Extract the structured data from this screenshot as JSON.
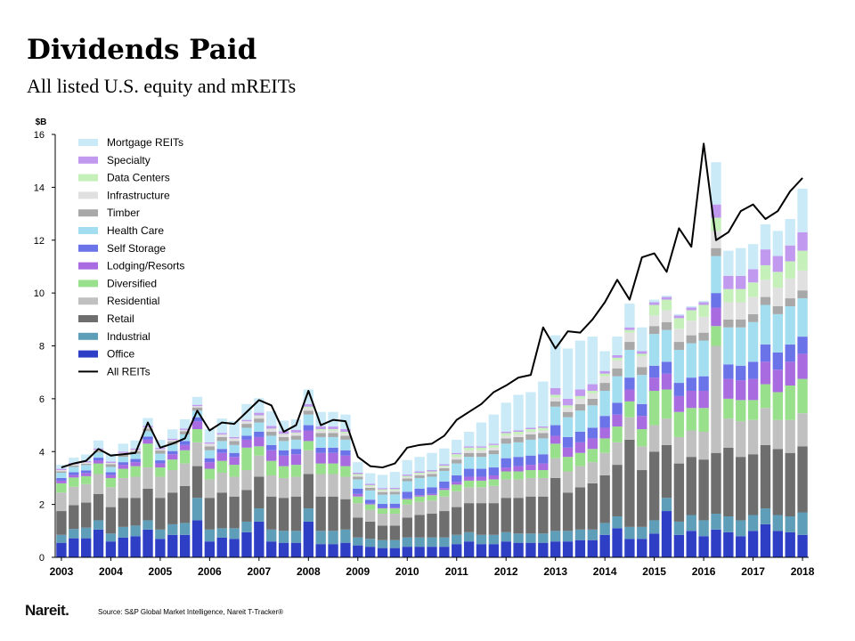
{
  "header": {
    "title": "Dividends Paid",
    "subtitle": "All listed U.S. equity and mREITs"
  },
  "footer": {
    "logo": "Nareit.",
    "source": "Source: S&P Global Market Intelligence, Nareit T-Tracker®"
  },
  "colors": {
    "Office": "#2e3fc6",
    "Industrial": "#5f9eb8",
    "Retail": "#6e6e6e",
    "Residential": "#c0c0c0",
    "Diversified": "#99e08c",
    "Lodging/Resorts": "#a86ce0",
    "Self Storage": "#6b73e8",
    "Health Care": "#a3def0",
    "Timber": "#a8a8a8",
    "Infrastructure": "#e0e0e0",
    "Data Centers": "#c6f0ba",
    "Specialty": "#c19af0",
    "Mortgage REITs": "#c9eaf6",
    "All REITs": "#000000"
  },
  "chart_data": {
    "type": "bar",
    "stacked": true,
    "ylabel": "$B",
    "ylim": [
      0,
      16
    ],
    "yticks": [
      0,
      2,
      4,
      6,
      8,
      10,
      12,
      14,
      16
    ],
    "xticks": [
      "2003",
      "2004",
      "2005",
      "2006",
      "2007",
      "2008",
      "2009",
      "2010",
      "2011",
      "2012",
      "2013",
      "2014",
      "2015",
      "2016",
      "2017",
      "2018"
    ],
    "legend_position": "top-left",
    "legend": [
      "Mortgage REITs",
      "Specialty",
      "Data Centers",
      "Infrastructure",
      "Timber",
      "Health Care",
      "Self Storage",
      "Lodging/Resorts",
      "Diversified",
      "Residential",
      "Retail",
      "Industrial",
      "Office",
      "All REITs"
    ],
    "quarters": [
      "2003Q1",
      "2003Q2",
      "2003Q3",
      "2003Q4",
      "2004Q1",
      "2004Q2",
      "2004Q3",
      "2004Q4",
      "2005Q1",
      "2005Q2",
      "2005Q3",
      "2005Q4",
      "2006Q1",
      "2006Q2",
      "2006Q3",
      "2006Q4",
      "2007Q1",
      "2007Q2",
      "2007Q3",
      "2007Q4",
      "2008Q1",
      "2008Q2",
      "2008Q3",
      "2008Q4",
      "2009Q1",
      "2009Q2",
      "2009Q3",
      "2009Q4",
      "2010Q1",
      "2010Q2",
      "2010Q3",
      "2010Q4",
      "2011Q1",
      "2011Q2",
      "2011Q3",
      "2011Q4",
      "2012Q1",
      "2012Q2",
      "2012Q3",
      "2012Q4",
      "2013Q1",
      "2013Q2",
      "2013Q3",
      "2013Q4",
      "2014Q1",
      "2014Q2",
      "2014Q3",
      "2014Q4",
      "2015Q1",
      "2015Q2",
      "2015Q3",
      "2015Q4",
      "2016Q1",
      "2016Q2",
      "2016Q3",
      "2016Q4",
      "2017Q1",
      "2017Q2",
      "2017Q3",
      "2017Q4",
      "2018Q1"
    ],
    "series": [
      {
        "name": "Office",
        "values": [
          0.55,
          0.72,
          0.72,
          1.05,
          0.6,
          0.75,
          0.8,
          1.05,
          0.7,
          0.85,
          0.85,
          1.4,
          0.6,
          0.75,
          0.7,
          0.95,
          1.35,
          0.6,
          0.55,
          0.55,
          1.35,
          0.5,
          0.5,
          0.55,
          0.45,
          0.4,
          0.35,
          0.35,
          0.4,
          0.4,
          0.4,
          0.4,
          0.5,
          0.6,
          0.5,
          0.5,
          0.6,
          0.55,
          0.55,
          0.55,
          0.6,
          0.6,
          0.65,
          0.65,
          0.85,
          1.1,
          0.7,
          0.7,
          0.9,
          1.75,
          0.85,
          1.0,
          0.8,
          1.05,
          0.95,
          0.8,
          1.0,
          1.25,
          1.0,
          0.95,
          0.85
        ]
      },
      {
        "name": "Industrial",
        "values": [
          0.3,
          0.35,
          0.4,
          0.35,
          0.3,
          0.4,
          0.4,
          0.35,
          0.35,
          0.4,
          0.45,
          0.85,
          0.45,
          0.35,
          0.4,
          0.4,
          0.5,
          0.45,
          0.45,
          0.45,
          0.5,
          0.5,
          0.5,
          0.5,
          0.3,
          0.3,
          0.3,
          0.3,
          0.35,
          0.35,
          0.35,
          0.35,
          0.35,
          0.35,
          0.35,
          0.35,
          0.35,
          0.35,
          0.35,
          0.35,
          0.4,
          0.4,
          0.4,
          0.4,
          0.45,
          0.45,
          0.45,
          0.45,
          0.5,
          0.5,
          0.5,
          0.6,
          0.6,
          0.6,
          0.6,
          0.6,
          0.6,
          0.6,
          0.6,
          0.6,
          0.85
        ]
      },
      {
        "name": "Retail",
        "values": [
          0.9,
          0.9,
          0.95,
          1.0,
          1.0,
          1.1,
          1.05,
          1.2,
          1.2,
          1.2,
          1.4,
          1.2,
          1.2,
          1.35,
          1.2,
          1.2,
          1.2,
          1.25,
          1.25,
          1.3,
          1.3,
          1.3,
          1.3,
          1.15,
          0.75,
          0.65,
          0.55,
          0.55,
          0.75,
          0.85,
          0.9,
          1.0,
          1.05,
          1.1,
          1.2,
          1.2,
          1.3,
          1.35,
          1.4,
          1.4,
          2.0,
          1.45,
          1.6,
          1.75,
          1.8,
          1.95,
          3.3,
          2.15,
          2.6,
          2.0,
          2.2,
          2.2,
          2.3,
          2.3,
          2.6,
          2.4,
          2.3,
          2.4,
          2.5,
          2.4,
          2.5
        ]
      },
      {
        "name": "Residential",
        "values": [
          0.7,
          0.7,
          0.7,
          0.75,
          0.75,
          0.75,
          0.8,
          0.8,
          0.8,
          0.85,
          0.85,
          0.9,
          0.7,
          0.75,
          0.75,
          0.75,
          0.8,
          0.8,
          0.75,
          0.75,
          0.9,
          0.85,
          0.85,
          0.85,
          0.55,
          0.45,
          0.45,
          0.45,
          0.5,
          0.5,
          0.5,
          0.55,
          0.6,
          0.6,
          0.6,
          0.65,
          0.7,
          0.7,
          0.7,
          0.7,
          0.75,
          0.8,
          0.8,
          0.8,
          0.85,
          0.85,
          0.85,
          0.9,
          1.0,
          1.0,
          1.0,
          1.0,
          1.05,
          4.05,
          1.1,
          1.35,
          1.3,
          1.4,
          1.1,
          1.25,
          1.25
        ]
      },
      {
        "name": "Diversified",
        "values": [
          0.35,
          0.35,
          0.3,
          0.4,
          0.35,
          0.35,
          0.4,
          0.9,
          0.35,
          0.4,
          0.5,
          0.5,
          0.4,
          0.45,
          0.45,
          0.85,
          0.35,
          0.55,
          0.45,
          0.45,
          0.35,
          0.4,
          0.4,
          0.4,
          0.25,
          0.2,
          0.2,
          0.2,
          0.2,
          0.2,
          0.2,
          0.25,
          0.25,
          0.25,
          0.25,
          0.25,
          0.3,
          0.3,
          0.3,
          0.3,
          0.55,
          0.55,
          0.5,
          0.5,
          0.55,
          0.6,
          0.6,
          0.65,
          1.3,
          1.1,
          0.95,
          0.85,
          0.9,
          0.75,
          0.75,
          0.8,
          0.75,
          0.9,
          1.05,
          1.3,
          1.3
        ]
      },
      {
        "name": "Lodging/Resorts",
        "values": [
          0.1,
          0.1,
          0.12,
          0.12,
          0.12,
          0.15,
          0.15,
          0.15,
          0.15,
          0.2,
          0.2,
          0.3,
          0.25,
          0.3,
          0.3,
          0.3,
          0.35,
          0.4,
          0.4,
          0.4,
          0.4,
          0.4,
          0.4,
          0.4,
          0.1,
          0.03,
          0.02,
          0.03,
          0.03,
          0.05,
          0.05,
          0.07,
          0.1,
          0.15,
          0.15,
          0.15,
          0.15,
          0.2,
          0.2,
          0.25,
          0.3,
          0.35,
          0.4,
          0.4,
          0.4,
          0.45,
          0.45,
          0.5,
          0.5,
          0.6,
          0.6,
          0.65,
          0.65,
          0.7,
          0.75,
          0.75,
          0.8,
          0.85,
          0.85,
          0.9,
          0.95
        ]
      },
      {
        "name": "Self Storage",
        "values": [
          0.1,
          0.1,
          0.1,
          0.1,
          0.1,
          0.1,
          0.12,
          0.12,
          0.12,
          0.12,
          0.15,
          0.15,
          0.15,
          0.15,
          0.15,
          0.15,
          0.2,
          0.2,
          0.2,
          0.2,
          0.2,
          0.2,
          0.2,
          0.2,
          0.2,
          0.15,
          0.15,
          0.15,
          0.25,
          0.25,
          0.25,
          0.25,
          0.25,
          0.3,
          0.3,
          0.3,
          0.35,
          0.35,
          0.35,
          0.35,
          0.4,
          0.4,
          0.4,
          0.4,
          0.45,
          0.45,
          0.45,
          0.45,
          0.45,
          0.45,
          0.5,
          0.5,
          0.55,
          0.55,
          0.55,
          0.55,
          0.65,
          0.65,
          0.65,
          0.65,
          0.65
        ]
      },
      {
        "name": "Health Care",
        "values": [
          0.2,
          0.2,
          0.2,
          0.2,
          0.2,
          0.2,
          0.2,
          0.2,
          0.25,
          0.25,
          0.25,
          0.25,
          0.3,
          0.3,
          0.3,
          0.3,
          0.35,
          0.35,
          0.35,
          0.35,
          0.4,
          0.4,
          0.4,
          0.4,
          0.35,
          0.35,
          0.35,
          0.35,
          0.4,
          0.4,
          0.4,
          0.4,
          0.45,
          0.45,
          0.45,
          0.5,
          0.55,
          0.55,
          0.6,
          0.6,
          0.7,
          0.75,
          0.8,
          0.85,
          0.95,
          1.0,
          1.05,
          1.1,
          1.2,
          1.2,
          1.25,
          1.3,
          1.35,
          1.4,
          1.4,
          1.45,
          1.5,
          1.5,
          1.45,
          1.45,
          1.45
        ]
      },
      {
        "name": "Timber",
        "values": [
          0.05,
          0.05,
          0.05,
          0.05,
          0.1,
          0.1,
          0.1,
          0.1,
          0.12,
          0.12,
          0.12,
          0.12,
          0.15,
          0.15,
          0.15,
          0.15,
          0.15,
          0.15,
          0.15,
          0.15,
          0.15,
          0.15,
          0.15,
          0.15,
          0.1,
          0.1,
          0.1,
          0.1,
          0.1,
          0.1,
          0.1,
          0.1,
          0.15,
          0.15,
          0.15,
          0.15,
          0.2,
          0.2,
          0.2,
          0.2,
          0.2,
          0.2,
          0.25,
          0.25,
          0.3,
          0.3,
          0.3,
          0.3,
          0.3,
          0.3,
          0.3,
          0.3,
          0.3,
          0.3,
          0.3,
          0.3,
          0.3,
          0.3,
          0.3,
          0.3,
          0.3
        ]
      },
      {
        "name": "Infrastructure",
        "values": [
          0.05,
          0.05,
          0.05,
          0.05,
          0.05,
          0.05,
          0.05,
          0.05,
          0.05,
          0.05,
          0.05,
          0.05,
          0.1,
          0.1,
          0.1,
          0.1,
          0.1,
          0.1,
          0.1,
          0.1,
          0.1,
          0.1,
          0.1,
          0.1,
          0.05,
          0.05,
          0.05,
          0.05,
          0.05,
          0.05,
          0.05,
          0.05,
          0.1,
          0.1,
          0.1,
          0.1,
          0.1,
          0.1,
          0.1,
          0.1,
          0.15,
          0.15,
          0.2,
          0.2,
          0.25,
          0.3,
          0.35,
          0.4,
          0.4,
          0.45,
          0.5,
          0.55,
          0.6,
          0.65,
          0.65,
          0.65,
          0.65,
          0.65,
          0.7,
          0.75,
          0.75
        ]
      },
      {
        "name": "Data Centers",
        "values": [
          0,
          0,
          0,
          0,
          0,
          0,
          0,
          0,
          0,
          0,
          0,
          0,
          0,
          0,
          0,
          0,
          0.02,
          0.02,
          0.02,
          0.02,
          0.05,
          0.05,
          0.05,
          0.05,
          0.05,
          0.05,
          0.05,
          0.05,
          0.05,
          0.05,
          0.05,
          0.05,
          0.1,
          0.1,
          0.1,
          0.1,
          0.1,
          0.1,
          0.1,
          0.1,
          0.1,
          0.1,
          0.1,
          0.1,
          0.1,
          0.1,
          0.1,
          0.1,
          0.4,
          0.4,
          0.4,
          0.4,
          0.45,
          0.5,
          0.5,
          0.5,
          0.55,
          0.55,
          0.6,
          0.65,
          0.75
        ]
      },
      {
        "name": "Specialty",
        "values": [
          0.05,
          0.05,
          0.05,
          0.05,
          0.05,
          0.05,
          0.05,
          0.05,
          0.05,
          0.05,
          0.05,
          0.05,
          0.05,
          0.05,
          0.05,
          0.05,
          0.1,
          0.1,
          0.1,
          0.1,
          0.1,
          0.1,
          0.1,
          0.1,
          0.05,
          0.05,
          0.05,
          0.05,
          0.05,
          0.05,
          0.05,
          0.05,
          0.05,
          0.05,
          0.05,
          0.05,
          0.05,
          0.05,
          0.05,
          0.05,
          0.25,
          0.25,
          0.25,
          0.25,
          0.1,
          0.1,
          0.1,
          0.1,
          0.1,
          0.1,
          0.1,
          0.1,
          0.1,
          0.5,
          0.5,
          0.5,
          0.5,
          0.6,
          0.6,
          0.6,
          0.7
        ]
      },
      {
        "name": "Mortgage REITs",
        "values": [
          0.15,
          0.2,
          0.25,
          0.3,
          0.3,
          0.3,
          0.3,
          0.3,
          0.3,
          0.35,
          0.35,
          0.3,
          0.5,
          0.55,
          0.6,
          0.6,
          0.55,
          0.55,
          0.4,
          0.4,
          0.55,
          0.55,
          0.55,
          0.55,
          0.4,
          0.4,
          0.5,
          0.6,
          0.55,
          0.55,
          0.65,
          0.6,
          0.5,
          0.55,
          0.9,
          1.1,
          1.1,
          1.35,
          1.35,
          1.7,
          2.0,
          1.9,
          1.85,
          1.8,
          0.75,
          0.7,
          0.9,
          0.9,
          0.1,
          0.05,
          0.05,
          0.05,
          0.05,
          1.6,
          0.95,
          1.05,
          0.95,
          0.95,
          0.95,
          1.0,
          1.65
        ]
      },
      {
        "name": "All REITs",
        "type": "line",
        "values": [
          3.4,
          3.55,
          3.65,
          4.1,
          3.85,
          3.9,
          3.95,
          5.1,
          4.15,
          4.3,
          4.5,
          5.55,
          4.8,
          5.1,
          5.05,
          5.5,
          5.95,
          5.75,
          4.75,
          5.0,
          6.3,
          5.0,
          5.2,
          5.15,
          3.8,
          3.45,
          3.4,
          3.55,
          4.15,
          4.25,
          4.3,
          4.6,
          5.2,
          5.5,
          5.8,
          6.25,
          6.5,
          6.8,
          6.9,
          8.7,
          7.9,
          8.55,
          8.5,
          9.0,
          9.65,
          10.5,
          9.75,
          11.35,
          11.5,
          10.8,
          12.45,
          11.75,
          15.65,
          12.0,
          12.3,
          13.1,
          13.35,
          12.8,
          13.1,
          13.85,
          14.35
        ]
      }
    ]
  }
}
